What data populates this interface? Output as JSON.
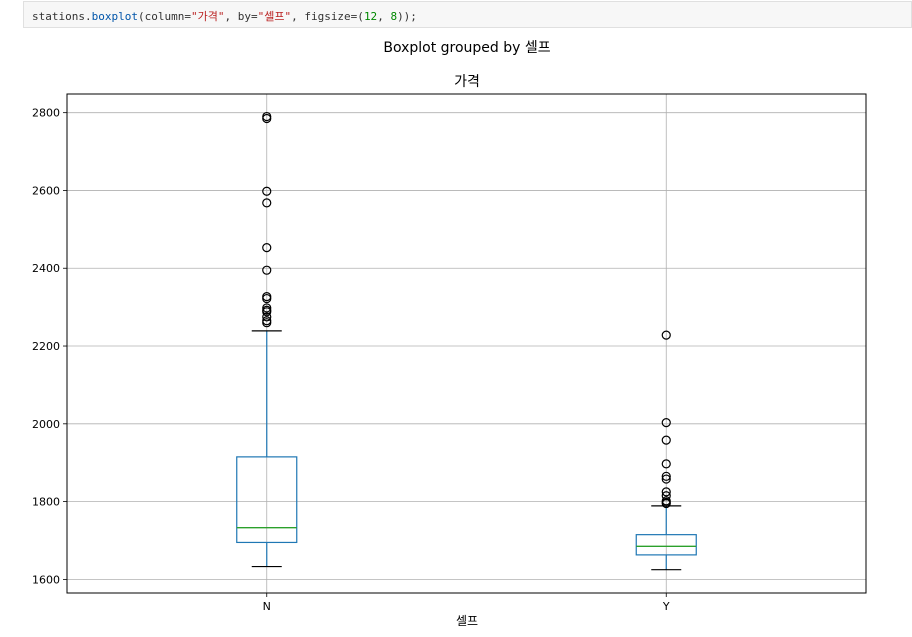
{
  "code_cell": {
    "parts": [
      {
        "text": "stations.",
        "cls": "tok-kw"
      },
      {
        "text": "boxplot",
        "cls": "tok-fn"
      },
      {
        "text": "(column=",
        "cls": "tok-kw"
      },
      {
        "text": "\"가격\"",
        "cls": "tok-str"
      },
      {
        "text": ", by=",
        "cls": "tok-kw"
      },
      {
        "text": "\"셀프\"",
        "cls": "tok-str"
      },
      {
        "text": ", figsize=(",
        "cls": "tok-kw"
      },
      {
        "text": "12",
        "cls": "tok-num"
      },
      {
        "text": ", ",
        "cls": "tok-kw"
      },
      {
        "text": "8",
        "cls": "tok-num"
      },
      {
        "text": "));",
        "cls": "tok-kw"
      }
    ]
  },
  "chart_data": {
    "type": "box",
    "suptitle": "Boxplot grouped by 셀프",
    "title": "가격",
    "xlabel": "셀프",
    "ylabel": "",
    "ylim": [
      1565,
      2848
    ],
    "yticks": [
      1600,
      1800,
      2000,
      2200,
      2400,
      2600,
      2800
    ],
    "grid": true,
    "categories": [
      "N",
      "Y"
    ],
    "boxes": [
      {
        "name": "N",
        "whisker_low": 1633,
        "q1": 1695,
        "median": 1733,
        "q3": 1915,
        "whisker_high": 2239,
        "outliers": [
          2260,
          2265,
          2275,
          2288,
          2292,
          2298,
          2322,
          2327,
          2395,
          2453,
          2568,
          2598,
          2785,
          2790
        ]
      },
      {
        "name": "Y",
        "whisker_low": 1625,
        "q1": 1663,
        "median": 1685,
        "q3": 1715,
        "whisker_high": 1789,
        "outliers": [
          1795,
          1798,
          1802,
          1815,
          1825,
          1858,
          1865,
          1897,
          1958,
          2003,
          2228
        ]
      }
    ],
    "colors": {
      "box": "#1f77b4",
      "median": "#2ca02c",
      "whisker_cap": "#000000",
      "outlier": "#000000",
      "grid": "#b0b0b0",
      "axes": "#000000"
    }
  }
}
